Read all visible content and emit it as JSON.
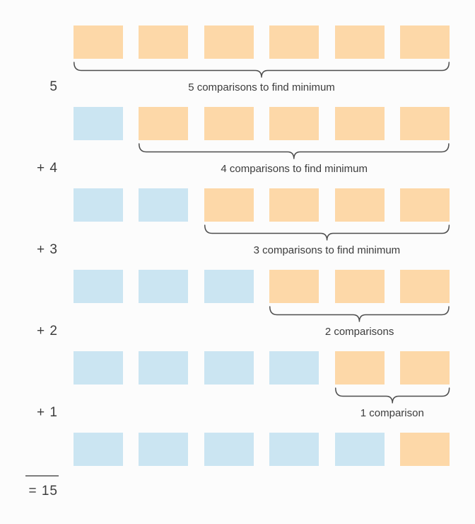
{
  "page": {
    "background": "#fcfcfc"
  },
  "colors": {
    "unsorted_fill": "#fdd8a8",
    "sorted_fill": "#cbe5f2",
    "text": "#3c3c3c",
    "brace_stroke": "#4d4d4d",
    "sum_line": "#7d7d7d"
  },
  "diagram": {
    "title_semantic": "selection-sort-comparisons",
    "total_items": 6,
    "rows": [
      {
        "label": "5",
        "sorted_count": 0,
        "unsorted_count": 6,
        "brace_label": "5 comparisons to find minimum"
      },
      {
        "label": "+ 4",
        "sorted_count": 1,
        "unsorted_count": 5,
        "brace_label": "4 comparisons to find minimum"
      },
      {
        "label": "+ 3",
        "sorted_count": 2,
        "unsorted_count": 4,
        "brace_label": "3 comparisons to find minimum"
      },
      {
        "label": "+ 2",
        "sorted_count": 3,
        "unsorted_count": 3,
        "brace_label": "2 comparisons"
      },
      {
        "label": "+ 1",
        "sorted_count": 4,
        "unsorted_count": 2,
        "brace_label": "1 comparison"
      },
      {
        "label": "",
        "sorted_count": 5,
        "unsorted_count": 1,
        "brace_label": ""
      }
    ],
    "total_label": "= 15"
  }
}
